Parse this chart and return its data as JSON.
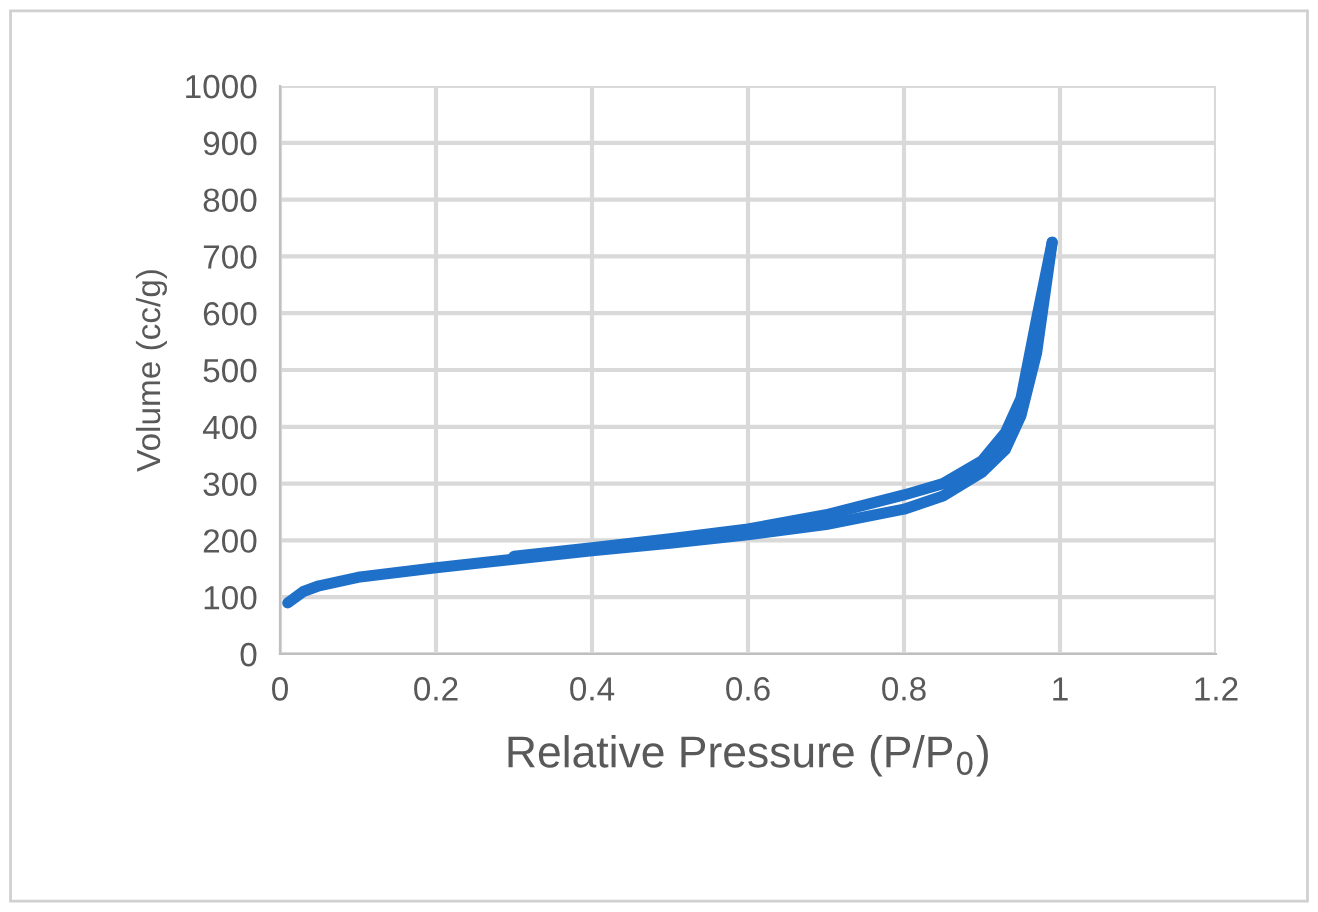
{
  "chart_data": {
    "type": "line",
    "xlabel": "Relative Pressure (P/P$_{0}$)",
    "ylabel": "Volume (cc/g)",
    "xlim": [
      0,
      1.2
    ],
    "xticks": [
      0,
      0.2,
      0.4,
      0.6,
      0.8,
      1,
      1.2
    ],
    "ylim": [
      0,
      1000
    ],
    "yticks": [
      0,
      100,
      200,
      300,
      400,
      500,
      600,
      700,
      800,
      900,
      1000
    ],
    "grid": true,
    "marker": "none",
    "line_style": "solid",
    "series": [
      {
        "color": "#1f70c8",
        "x": [
          0.01,
          0.03,
          0.05,
          0.1,
          0.2,
          0.3,
          0.4,
          0.5,
          0.6,
          0.7,
          0.8,
          0.85,
          0.9,
          0.93,
          0.95,
          0.97,
          0.99
        ],
        "values": [
          90,
          110,
          120,
          135,
          152,
          167,
          182,
          195,
          210,
          228,
          255,
          278,
          320,
          360,
          420,
          530,
          725
        ]
      },
      {
        "color": "#1f70c8",
        "x": [
          0.99,
          0.97,
          0.95,
          0.93,
          0.9,
          0.85,
          0.8,
          0.7,
          0.6,
          0.5,
          0.4,
          0.3
        ],
        "values": [
          725,
          590,
          450,
          390,
          340,
          300,
          280,
          245,
          220,
          203,
          187,
          172
        ]
      }
    ]
  }
}
